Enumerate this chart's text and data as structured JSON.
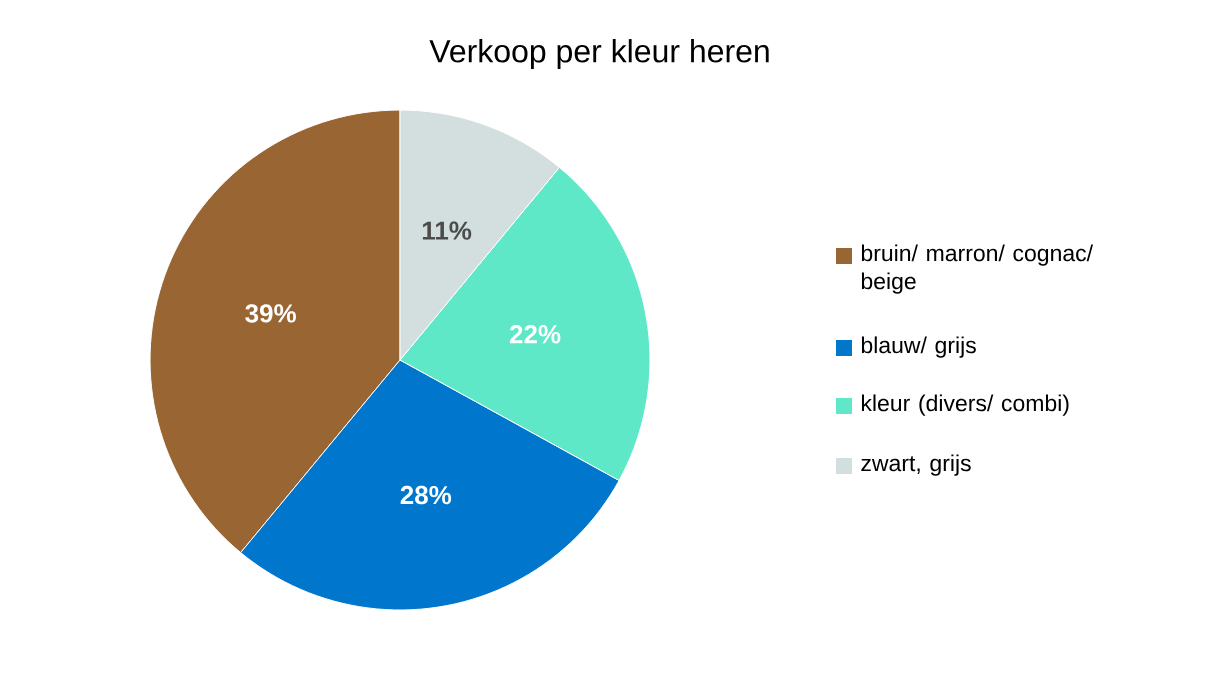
{
  "chart_data": {
    "type": "pie",
    "title": "Verkoop per kleur heren",
    "categories": [
      "bruin/ marron/ cognac/ beige",
      "blauw/ grijs",
      "kleur (divers/ combi)",
      "zwart, grijs"
    ],
    "values": [
      39,
      28,
      22,
      11
    ],
    "value_labels": [
      "39%",
      "28%",
      "22%",
      "11%"
    ],
    "colors": [
      "#996633",
      "#0077cc",
      "#5ee8c8",
      "#d3dedf"
    ],
    "legend": "right"
  }
}
